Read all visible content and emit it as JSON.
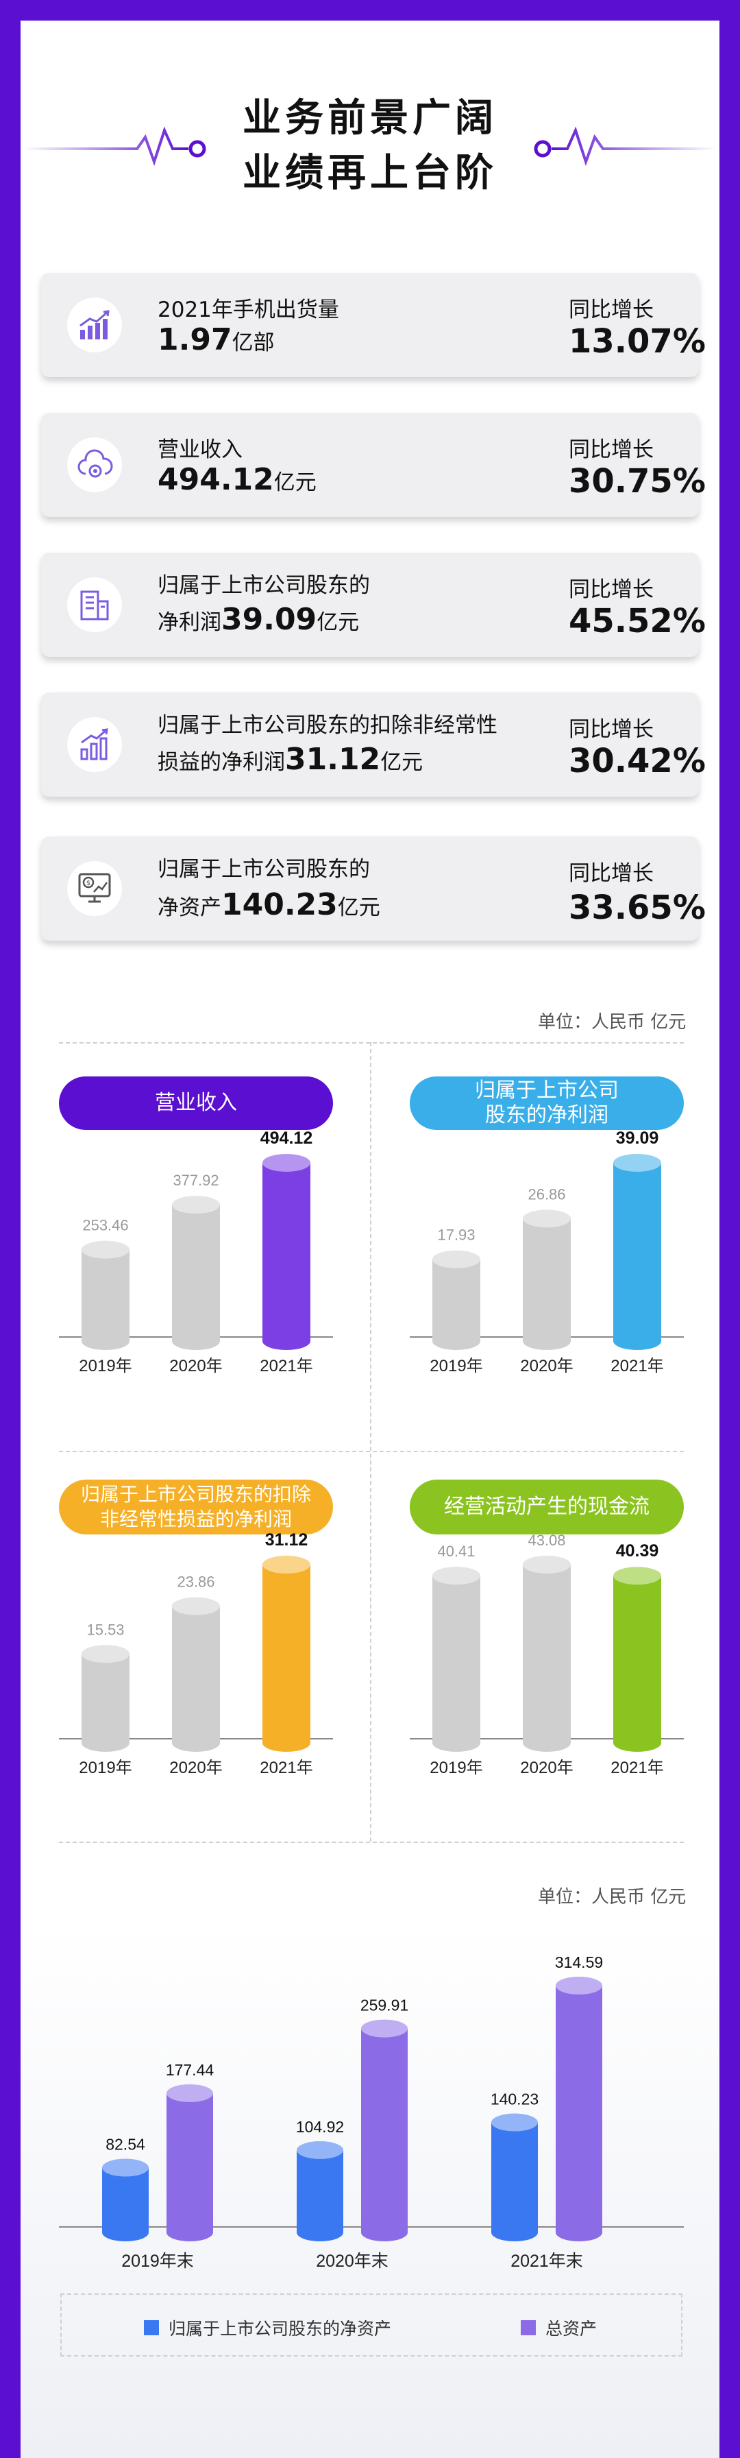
{
  "header": {
    "title_line1": "业务前景广阔",
    "title_line2": "业绩再上台阶"
  },
  "cards": [
    {
      "icon": "chart-up-icon",
      "label": "2021年手机出货量",
      "label2": "",
      "value": "1.97",
      "unit": "亿部",
      "growth_label": "同比增长",
      "growth": "13.07%"
    },
    {
      "icon": "cloud-gear-icon",
      "label": "营业收入",
      "label2": "",
      "value": "494.12",
      "unit": "亿元",
      "growth_label": "同比增长",
      "growth": "30.75%"
    },
    {
      "icon": "building-icon",
      "label": "归属于上市公司股东的",
      "label2": "净利润",
      "value": "39.09",
      "unit": "亿元",
      "growth_label": "同比增长",
      "growth": "45.52%"
    },
    {
      "icon": "bar-arrow-icon",
      "label": "归属于上市公司股东的扣除非经常性",
      "label2": "损益的净利润",
      "value": "31.12",
      "unit": "亿元",
      "growth_label": "同比增长",
      "growth": "30.42%"
    },
    {
      "icon": "monitor-dollar-icon",
      "label": "归属于上市公司股东的",
      "label2": "净资产",
      "value": "140.23",
      "unit": "亿元",
      "growth_label": "同比增长",
      "growth": "33.65%"
    }
  ],
  "unit_note_1": "单位：人民币 亿元",
  "unit_note_2": "单位：人民币 亿元",
  "chart_data": [
    {
      "type": "bar",
      "title": "营业收入",
      "categories": [
        "2019年",
        "2020年",
        "2021年"
      ],
      "values": [
        253.46,
        377.92,
        494.12
      ],
      "highlight_color": "#7B3FE4"
    },
    {
      "type": "bar",
      "title": "归属于上市公司股东的净利润",
      "title_line1": "归属于上市公司",
      "title_line2": "股东的净利润",
      "categories": [
        "2019年",
        "2020年",
        "2021年"
      ],
      "values": [
        17.93,
        26.86,
        39.09
      ],
      "highlight_color": "#3AAEE8"
    },
    {
      "type": "bar",
      "title": "归属于上市公司股东的扣除非经常性损益的净利润",
      "title_line1": "归属于上市公司股东的扣除",
      "title_line2": "非经常性损益的净利润",
      "categories": [
        "2019年",
        "2020年",
        "2021年"
      ],
      "values": [
        15.53,
        23.86,
        31.12
      ],
      "highlight_color": "#F5B027"
    },
    {
      "type": "bar",
      "title": "经营活动产生的现金流",
      "categories": [
        "2019年",
        "2020年",
        "2021年"
      ],
      "values": [
        40.41,
        43.08,
        40.39
      ],
      "highlight_color": "#8BC421"
    },
    {
      "type": "bar",
      "categories": [
        "2019年末",
        "2020年末",
        "2021年末"
      ],
      "series": [
        {
          "name": "归属于上市公司股东的净资产",
          "values": [
            82.54,
            104.92,
            140.23
          ],
          "color": "#3A78F2"
        },
        {
          "name": "总资产",
          "values": [
            177.44,
            259.91,
            314.59
          ],
          "color": "#8B6CE6"
        }
      ]
    }
  ],
  "colors": {
    "gray_bar": "#CFCFCF",
    "frame": "#5B0FD1",
    "pill_purple": "#5B0FD1",
    "pill_blue": "#3AAEE8",
    "pill_orange": "#F5B027",
    "pill_green": "#8BC421"
  }
}
